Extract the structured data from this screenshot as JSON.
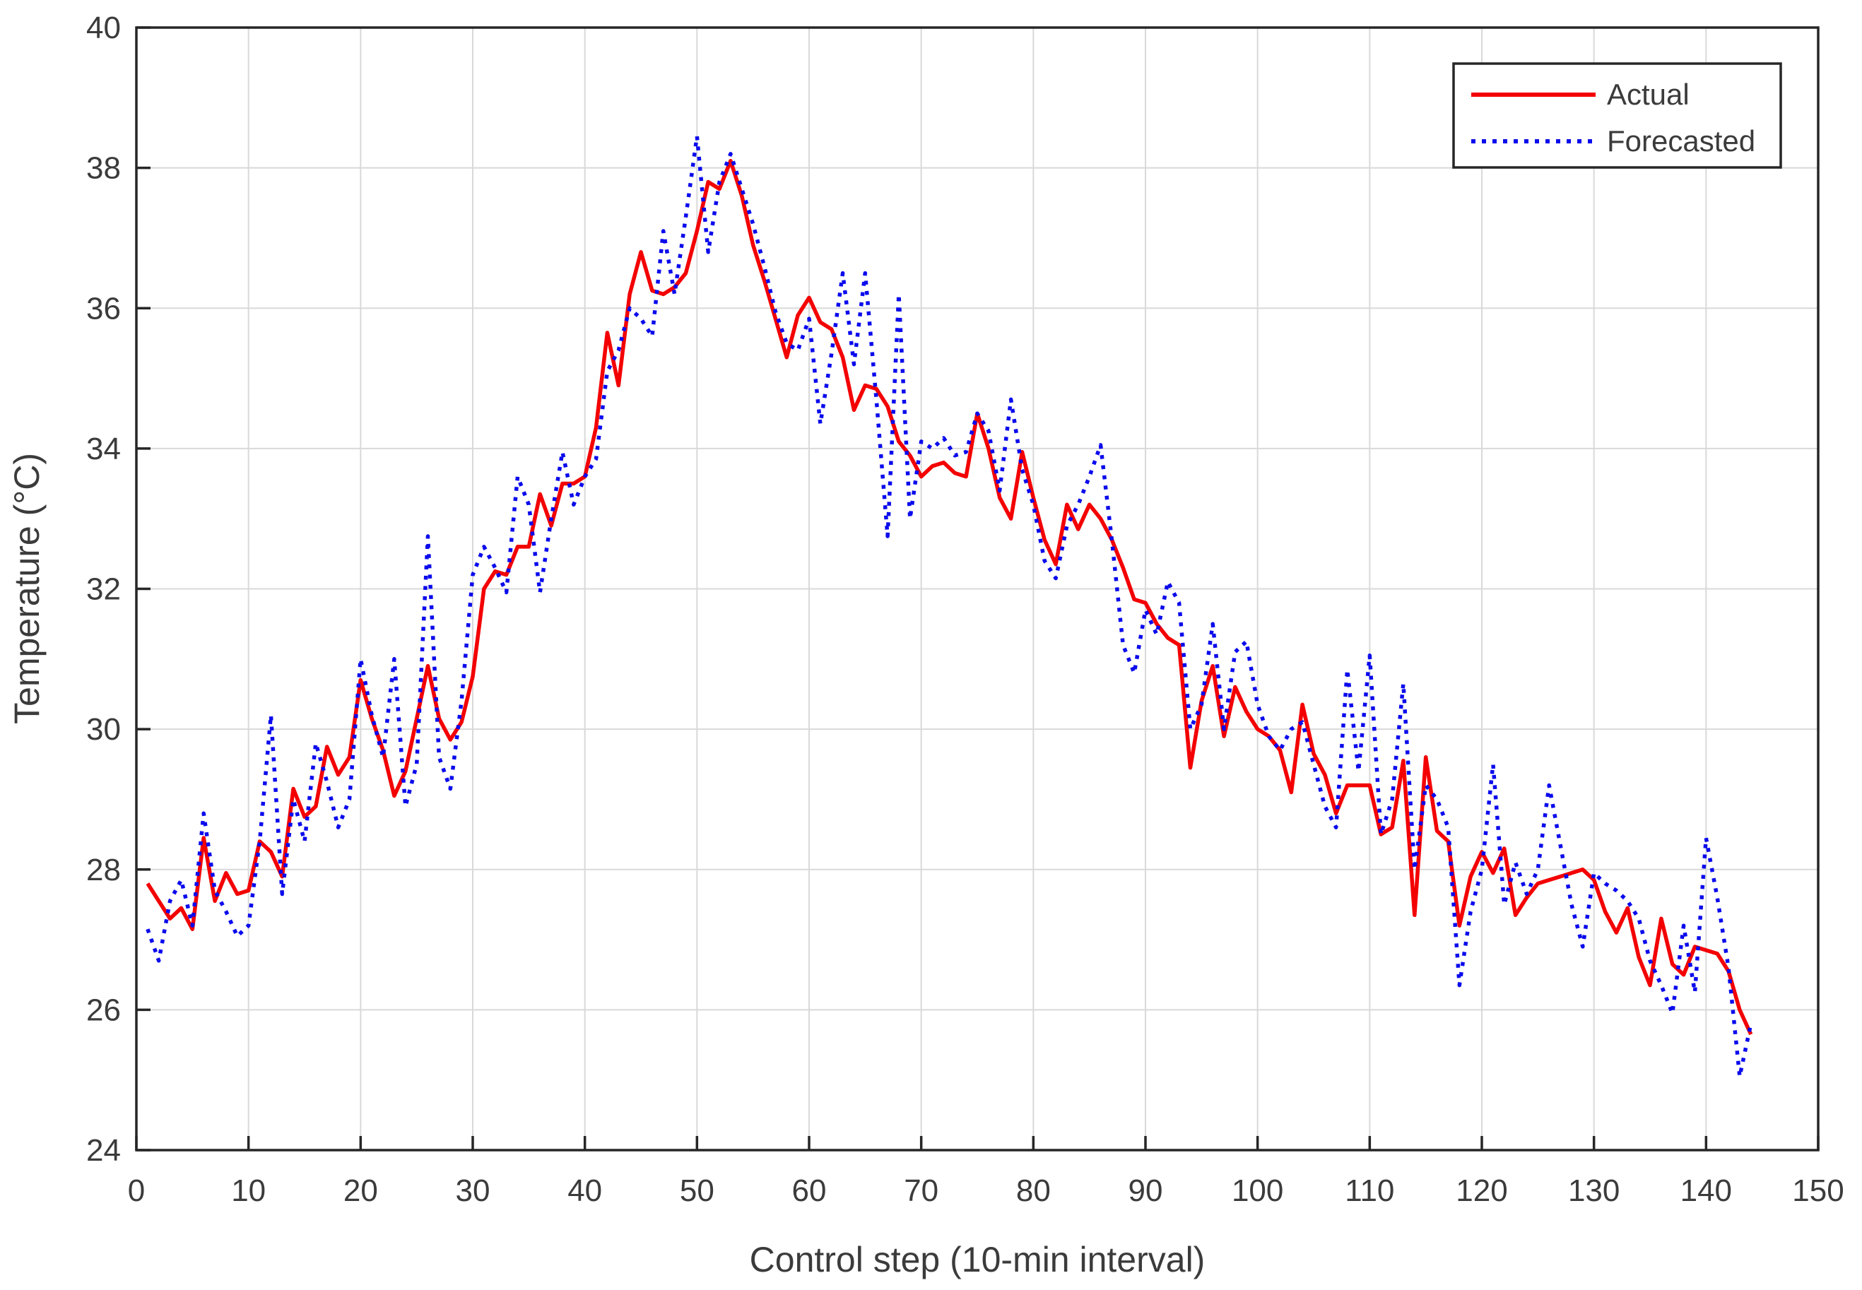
{
  "chart_data": {
    "type": "line",
    "title": "",
    "xlabel": "Control step (10-min interval)",
    "ylabel": "Temperature (°C)",
    "xlim": [
      0,
      150
    ],
    "ylim": [
      24,
      40
    ],
    "xticks": [
      0,
      10,
      20,
      30,
      40,
      50,
      60,
      70,
      80,
      90,
      100,
      110,
      120,
      130,
      140,
      150
    ],
    "yticks": [
      24,
      26,
      28,
      30,
      32,
      34,
      36,
      38,
      40
    ],
    "grid": true,
    "x_start": 1,
    "legend": {
      "position": "top-right",
      "entries": [
        {
          "label": "Actual",
          "color": "#f30000",
          "style": "solid"
        },
        {
          "label": "Forecasted",
          "color": "#0b0bec",
          "style": "dotted"
        }
      ]
    },
    "series": [
      {
        "name": "Actual",
        "color": "#f30000",
        "style": "solid",
        "values": [
          27.8,
          27.55,
          27.3,
          27.45,
          27.15,
          28.45,
          27.55,
          27.95,
          27.65,
          27.7,
          28.4,
          28.25,
          27.9,
          29.15,
          28.75,
          28.9,
          29.75,
          29.35,
          29.6,
          30.7,
          30.15,
          29.7,
          29.05,
          29.4,
          30.15,
          30.9,
          30.15,
          29.85,
          30.1,
          30.75,
          32.0,
          32.25,
          32.2,
          32.6,
          32.6,
          33.35,
          32.9,
          33.5,
          33.5,
          33.6,
          34.3,
          35.65,
          34.9,
          36.2,
          36.8,
          36.25,
          36.2,
          36.3,
          36.5,
          37.1,
          37.8,
          37.7,
          38.1,
          37.6,
          36.9,
          36.4,
          35.85,
          35.3,
          35.9,
          36.15,
          35.8,
          35.7,
          35.3,
          34.55,
          34.9,
          34.85,
          34.6,
          34.1,
          33.9,
          33.6,
          33.75,
          33.8,
          33.65,
          33.6,
          34.5,
          34.0,
          33.3,
          33.0,
          33.95,
          33.3,
          32.7,
          32.35,
          33.2,
          32.85,
          33.2,
          33.0,
          32.7,
          32.3,
          31.85,
          31.8,
          31.5,
          31.3,
          31.2,
          29.45,
          30.4,
          30.9,
          29.9,
          30.6,
          30.25,
          30.0,
          29.9,
          29.7,
          29.1,
          30.35,
          29.65,
          29.35,
          28.8,
          29.2,
          29.2,
          29.2,
          28.5,
          28.6,
          29.55,
          27.35,
          29.6,
          28.55,
          28.4,
          27.2,
          27.9,
          28.25,
          27.95,
          28.3,
          27.35,
          27.6,
          27.8,
          27.85,
          27.9,
          27.95,
          28.0,
          27.85,
          27.4,
          27.1,
          27.45,
          26.75,
          26.35,
          27.3,
          26.65,
          26.5,
          26.9,
          26.85,
          26.8,
          26.55,
          26.0,
          25.65
        ]
      },
      {
        "name": "Forecasted",
        "color": "#0b0bec",
        "style": "dotted",
        "values": [
          27.15,
          26.7,
          27.55,
          27.85,
          27.2,
          28.8,
          27.7,
          27.4,
          27.05,
          27.2,
          28.4,
          30.2,
          27.65,
          29.0,
          28.4,
          29.8,
          29.25,
          28.6,
          29.0,
          31.0,
          30.2,
          29.6,
          31.0,
          28.9,
          29.5,
          32.75,
          29.6,
          29.15,
          30.4,
          32.2,
          32.6,
          32.3,
          31.95,
          33.6,
          33.2,
          31.95,
          33.0,
          33.95,
          33.2,
          33.6,
          33.85,
          35.1,
          35.4,
          36.0,
          35.85,
          35.6,
          37.1,
          36.2,
          37.3,
          38.45,
          36.8,
          37.8,
          38.2,
          37.7,
          37.2,
          36.6,
          35.95,
          35.5,
          35.4,
          35.85,
          34.35,
          35.35,
          36.5,
          35.2,
          36.5,
          34.7,
          32.75,
          36.2,
          33.0,
          34.1,
          34.0,
          34.15,
          33.9,
          33.95,
          34.5,
          34.25,
          33.4,
          34.7,
          33.7,
          33.2,
          32.4,
          32.15,
          32.9,
          33.2,
          33.6,
          34.05,
          32.7,
          31.2,
          30.8,
          31.7,
          31.35,
          32.1,
          31.8,
          30.0,
          30.35,
          31.5,
          30.0,
          31.1,
          31.25,
          30.35,
          29.9,
          29.7,
          30.0,
          30.1,
          29.5,
          28.9,
          28.6,
          30.85,
          29.4,
          31.05,
          28.5,
          29.0,
          30.65,
          28.0,
          29.2,
          29.0,
          28.6,
          26.35,
          27.4,
          28.0,
          29.5,
          27.5,
          28.1,
          27.65,
          28.0,
          29.2,
          28.35,
          27.5,
          26.9,
          27.95,
          27.8,
          27.7,
          27.55,
          27.3,
          26.7,
          26.35,
          25.95,
          27.2,
          26.25,
          28.45,
          27.6,
          26.6,
          25.05,
          25.8
        ]
      }
    ]
  },
  "axis_style": {
    "frame_color": "#262626",
    "grid_color": "#d9d9d9",
    "text_color": "#3b3b3b"
  }
}
